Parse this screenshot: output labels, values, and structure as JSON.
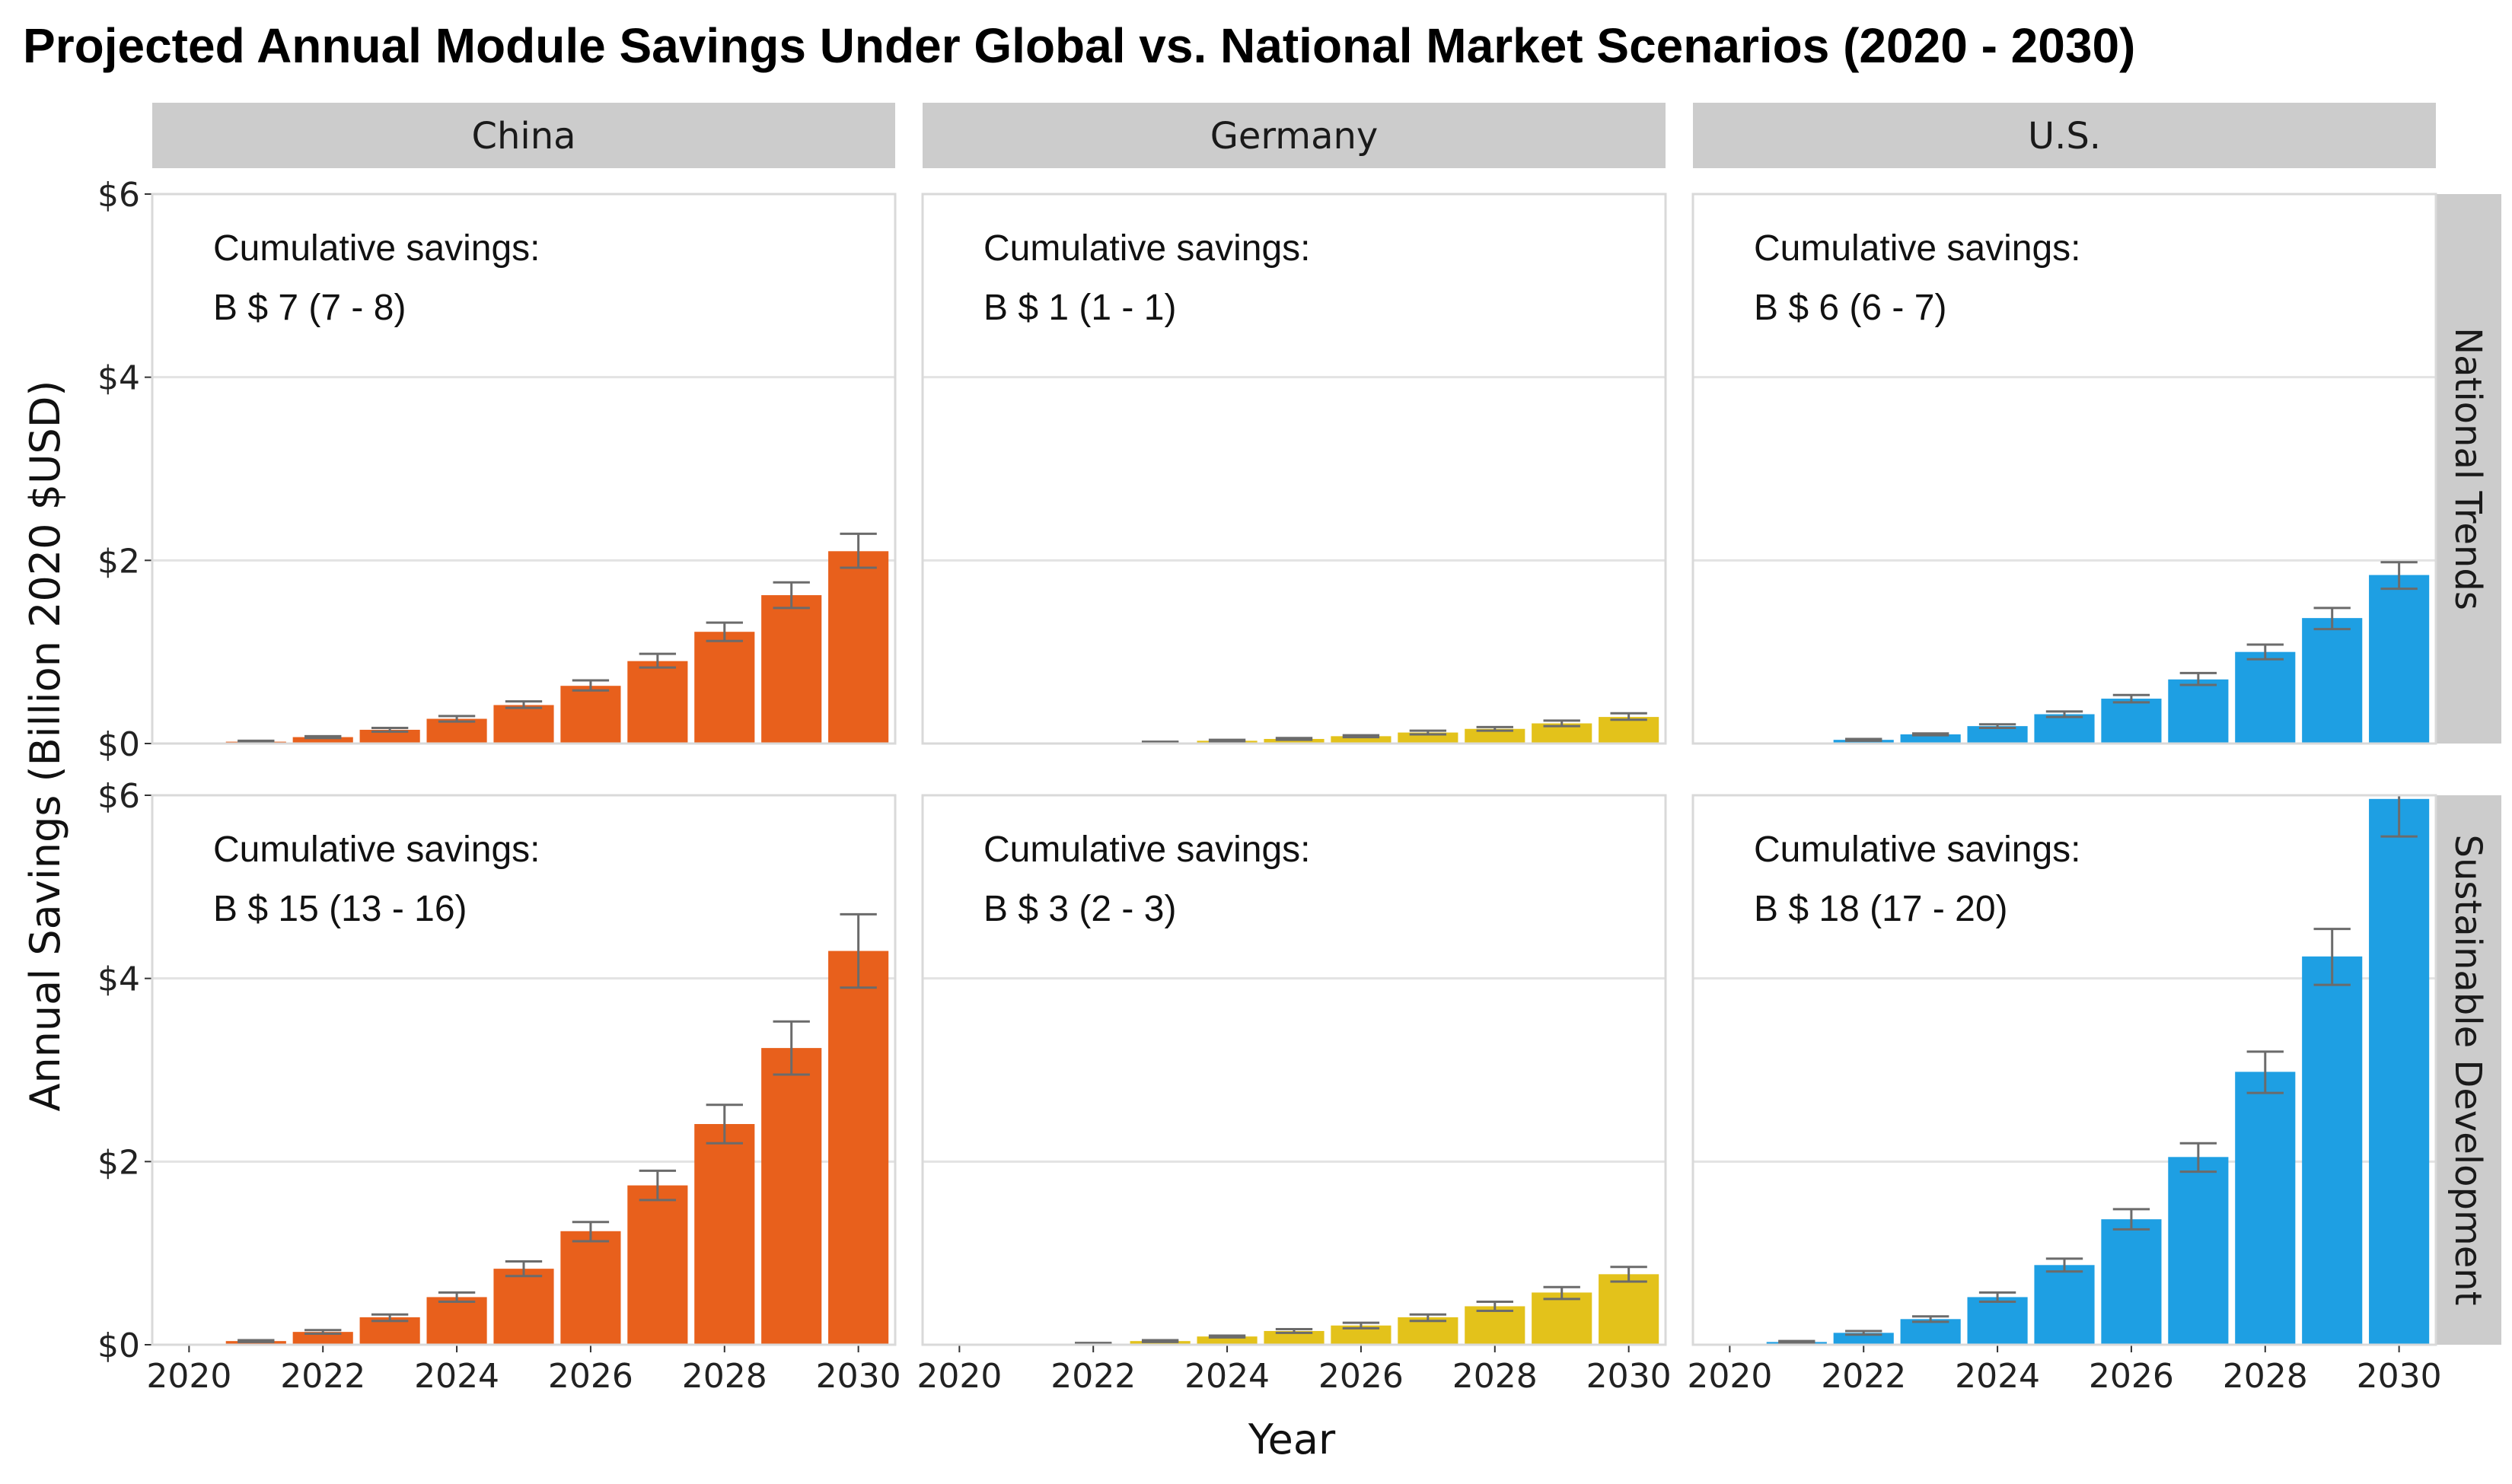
{
  "chart_data": {
    "type": "bar",
    "title": "Projected Annual Module Savings Under Global vs. National Market Scenarios (2020 - 2030)",
    "xlabel": "Year",
    "ylabel": "Annual Savings (Billion 2020 $USD)",
    "x": [
      2020,
      2021,
      2022,
      2023,
      2024,
      2025,
      2026,
      2027,
      2028,
      2029,
      2030
    ],
    "x_ticks": [
      2020,
      2022,
      2024,
      2026,
      2028,
      2030
    ],
    "x_tick_labels": [
      "2020",
      "2022",
      "2024",
      "2026",
      "2028",
      "2030"
    ],
    "ylim": [
      0,
      6
    ],
    "y_ticks": [
      0,
      2,
      4,
      6
    ],
    "y_tick_labels": [
      "$0",
      "$2",
      "$4",
      "$6"
    ],
    "grid": true,
    "legend": "none",
    "annotation_label": "Cumulative savings:",
    "columns": [
      {
        "name": "China",
        "color": "#E8601C"
      },
      {
        "name": "Germany",
        "color": "#E3C21B"
      },
      {
        "name": "U.S.",
        "color": "#1E9FE3"
      }
    ],
    "rows": [
      {
        "name": "National Trends"
      },
      {
        "name": "Sustainable Development"
      }
    ],
    "panels": [
      {
        "column": "China",
        "row": "National Trends",
        "cumulative": "B $ 7 (7 - 8)",
        "values": [
          0,
          0.02,
          0.07,
          0.15,
          0.27,
          0.42,
          0.63,
          0.9,
          1.22,
          1.62,
          2.1
        ],
        "err_low": [
          0,
          0.01,
          0.06,
          0.13,
          0.24,
          0.39,
          0.58,
          0.83,
          1.12,
          1.48,
          1.92
        ],
        "err_high": [
          0,
          0.03,
          0.08,
          0.17,
          0.3,
          0.46,
          0.69,
          0.98,
          1.32,
          1.76,
          2.29
        ]
      },
      {
        "column": "Germany",
        "row": "National Trends",
        "cumulative": "B $ 1 (1 - 1)",
        "values": [
          0,
          0,
          0,
          0.01,
          0.03,
          0.05,
          0.08,
          0.12,
          0.16,
          0.22,
          0.29
        ],
        "err_low": [
          0,
          0,
          0,
          0.01,
          0.02,
          0.04,
          0.07,
          0.1,
          0.14,
          0.19,
          0.26
        ],
        "err_high": [
          0,
          0,
          0,
          0.02,
          0.04,
          0.06,
          0.09,
          0.14,
          0.18,
          0.25,
          0.33
        ]
      },
      {
        "column": "U.S.",
        "row": "National Trends",
        "cumulative": "B $ 6 (6 - 7)",
        "values": [
          0,
          0,
          0.04,
          0.1,
          0.19,
          0.32,
          0.49,
          0.7,
          1.0,
          1.37,
          1.84
        ],
        "err_low": [
          0,
          0,
          0.03,
          0.09,
          0.17,
          0.29,
          0.45,
          0.64,
          0.92,
          1.25,
          1.69
        ],
        "err_high": [
          0,
          0,
          0.05,
          0.11,
          0.21,
          0.35,
          0.53,
          0.77,
          1.08,
          1.48,
          1.98
        ]
      },
      {
        "column": "China",
        "row": "Sustainable Development",
        "cumulative": "B $ 15 (13 - 16)",
        "values": [
          0,
          0.04,
          0.14,
          0.3,
          0.52,
          0.83,
          1.24,
          1.74,
          2.41,
          3.24,
          4.3
        ],
        "err_low": [
          0,
          0.03,
          0.12,
          0.26,
          0.47,
          0.75,
          1.13,
          1.58,
          2.2,
          2.95,
          3.9
        ],
        "err_high": [
          0,
          0.05,
          0.16,
          0.33,
          0.57,
          0.91,
          1.34,
          1.9,
          2.62,
          3.53,
          4.7
        ]
      },
      {
        "column": "Germany",
        "row": "Sustainable Development",
        "cumulative": "B $ 3 (2 - 3)",
        "values": [
          0,
          0,
          0.01,
          0.04,
          0.09,
          0.15,
          0.21,
          0.3,
          0.42,
          0.57,
          0.77
        ],
        "err_low": [
          0,
          0,
          0.01,
          0.03,
          0.08,
          0.13,
          0.18,
          0.26,
          0.37,
          0.5,
          0.69
        ],
        "err_high": [
          0,
          0,
          0.02,
          0.05,
          0.1,
          0.17,
          0.24,
          0.33,
          0.47,
          0.63,
          0.85
        ]
      },
      {
        "column": "U.S.",
        "row": "Sustainable Development",
        "cumulative": "B $ 18 (17 - 20)",
        "values": [
          0,
          0.03,
          0.13,
          0.28,
          0.52,
          0.87,
          1.37,
          2.05,
          2.98,
          4.24,
          5.96
        ],
        "err_low": [
          0,
          0.02,
          0.11,
          0.25,
          0.47,
          0.8,
          1.26,
          1.89,
          2.75,
          3.93,
          5.55
        ],
        "err_high": [
          0,
          0.04,
          0.15,
          0.31,
          0.57,
          0.94,
          1.48,
          2.2,
          3.2,
          4.54,
          6.0
        ]
      }
    ]
  }
}
